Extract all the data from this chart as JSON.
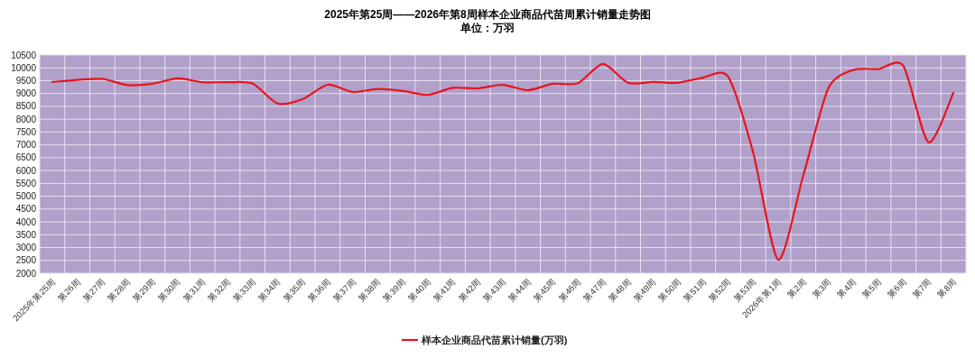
{
  "chart_data": {
    "type": "line",
    "title": "2025年第25周——2026年第8周样本企业商品代苗周累计销量走势图",
    "subtitle": "单位：万羽",
    "categories": [
      "2025年第25周",
      "第26周",
      "第27周",
      "第28周",
      "第29周",
      "第30周",
      "第31周",
      "第32周",
      "第33周",
      "第34周",
      "第35周",
      "第36周",
      "第37周",
      "第38周",
      "第39周",
      "第40周",
      "第41周",
      "第42周",
      "第43周",
      "第44周",
      "第45周",
      "第46周",
      "第47周",
      "第48周",
      "第49周",
      "第50周",
      "第51周",
      "第52周",
      "第53周",
      "2026年第1周",
      "第2周",
      "第3周",
      "第4周",
      "第5周",
      "第6周",
      "第7周",
      "第8周"
    ],
    "series": [
      {
        "name": "样本企业商品代苗累计销量(万羽)",
        "color": "#e8141e",
        "values": [
          9450,
          9530,
          9570,
          9330,
          9380,
          9590,
          9440,
          9440,
          9390,
          8610,
          8780,
          9340,
          9060,
          9180,
          9100,
          8950,
          9220,
          9200,
          9340,
          9130,
          9380,
          9400,
          10150,
          9420,
          9450,
          9420,
          9620,
          9650,
          6700,
          2530,
          5800,
          9200,
          9920,
          9950,
          10070,
          7100,
          9030
        ]
      }
    ],
    "ylim": [
      2000,
      10500
    ],
    "yticks": [
      2000,
      2500,
      3000,
      3500,
      4000,
      4500,
      5000,
      5500,
      6000,
      6500,
      7000,
      7500,
      8000,
      8500,
      9000,
      9500,
      10000,
      10500
    ],
    "grid": true,
    "legend": "bottom",
    "marker": "none",
    "line_style": "solid"
  }
}
